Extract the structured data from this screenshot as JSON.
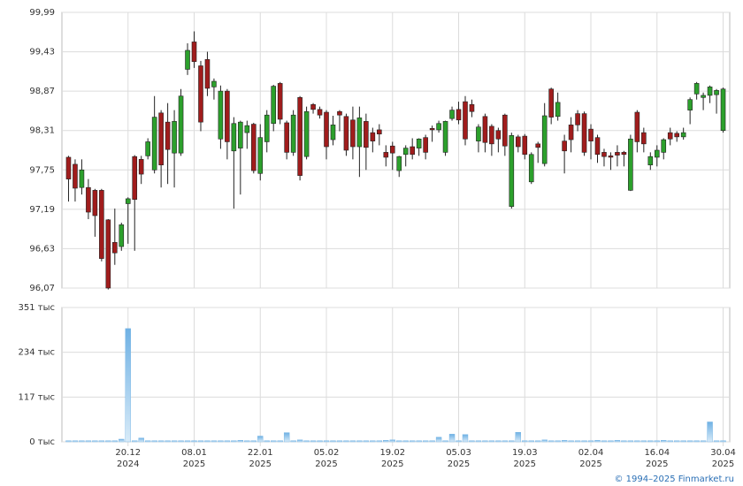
{
  "chart_data": {
    "type": "candlestick",
    "up_color": "#2ca02c",
    "down_color": "#a01c1c",
    "volume_color": "#6fb1e4",
    "ylim": [
      96.07,
      99.99
    ],
    "yticks": [
      {
        "value": 96.07,
        "label": "96,07"
      },
      {
        "value": 96.63,
        "label": "96,63"
      },
      {
        "value": 97.19,
        "label": "97,19"
      },
      {
        "value": 97.75,
        "label": "97,75"
      },
      {
        "value": 98.31,
        "label": "98,31"
      },
      {
        "value": 98.87,
        "label": "98,87"
      },
      {
        "value": 99.43,
        "label": "99,43"
      },
      {
        "value": 99.99,
        "label": "99,99"
      }
    ],
    "xlim": [
      -1,
      100
    ],
    "xticks": [
      {
        "value": 9,
        "label": "20.12",
        "year": "2024"
      },
      {
        "value": 19,
        "label": "08.01",
        "year": "2025"
      },
      {
        "value": 29,
        "label": "22.01",
        "year": "2025"
      },
      {
        "value": 39,
        "label": "05.02",
        "year": "2025"
      },
      {
        "value": 49,
        "label": "19.02",
        "year": "2025"
      },
      {
        "value": 59,
        "label": "05.03",
        "year": "2025"
      },
      {
        "value": 69,
        "label": "19.03",
        "year": "2025"
      },
      {
        "value": 79,
        "label": "02.04",
        "year": "2025"
      },
      {
        "value": 89,
        "label": "16.04",
        "year": "2025"
      },
      {
        "value": 99,
        "label": "30.04",
        "year": "2025"
      }
    ],
    "open": [
      97.93,
      97.83,
      97.5,
      97.5,
      97.46,
      97.46,
      97.04,
      96.72,
      96.66,
      97.27,
      97.94,
      97.9,
      97.95,
      97.75,
      98.56,
      98.43,
      97.99,
      97.99,
      99.18,
      99.57,
      99.23,
      99.32,
      98.93,
      98.19,
      98.87,
      98.02,
      98.06,
      98.28,
      98.4,
      97.7,
      98.15,
      98.41,
      98.98,
      98.42,
      98.0,
      98.78,
      97.94,
      98.68,
      98.61,
      98.57,
      98.18,
      98.58,
      98.51,
      98.46,
      98.08,
      98.44,
      98.28,
      98.32,
      98.0,
      98.09,
      97.74,
      97.97,
      98.08,
      98.06,
      98.21,
      98.34,
      98.32,
      98.0,
      98.48,
      98.61,
      98.72,
      98.68,
      98.16,
      98.51,
      98.37,
      98.31,
      98.53,
      97.23,
      98.22,
      98.23,
      97.58,
      98.12,
      97.84,
      98.9,
      98.51,
      98.16,
      98.39,
      98.55,
      98.55,
      98.33,
      98.21,
      98.0,
      97.95,
      98.0,
      98.0,
      97.46,
      98.57,
      98.28,
      97.82,
      97.93,
      98.0,
      98.28,
      98.27,
      98.22,
      98.6,
      98.83,
      98.78,
      98.81,
      98.82,
      98.31
    ],
    "high": [
      97.95,
      97.9,
      97.9,
      97.62,
      97.48,
      97.48,
      97.05,
      97.2,
      97.0,
      97.36,
      97.96,
      97.95,
      98.2,
      98.8,
      98.6,
      98.7,
      98.6,
      98.9,
      99.55,
      99.72,
      99.3,
      99.43,
      99.05,
      98.95,
      98.9,
      98.5,
      98.45,
      98.45,
      98.42,
      98.4,
      98.6,
      98.96,
      99.0,
      98.45,
      98.6,
      98.8,
      98.65,
      98.7,
      98.65,
      98.6,
      98.52,
      98.6,
      98.55,
      98.65,
      98.65,
      98.55,
      98.35,
      98.4,
      98.1,
      98.15,
      97.95,
      98.1,
      98.2,
      98.2,
      98.25,
      98.38,
      98.45,
      98.45,
      98.65,
      98.72,
      98.8,
      98.75,
      98.4,
      98.55,
      98.4,
      98.35,
      98.55,
      98.28,
      98.25,
      98.26,
      98.0,
      98.15,
      98.7,
      98.92,
      98.85,
      98.25,
      98.5,
      98.6,
      98.58,
      98.4,
      98.25,
      98.05,
      98.0,
      98.1,
      98.02,
      98.25,
      98.6,
      98.35,
      98.0,
      98.1,
      98.2,
      98.35,
      98.3,
      98.35,
      98.78,
      99.0,
      98.85,
      98.95,
      98.9,
      98.92
    ],
    "low": [
      97.3,
      97.3,
      97.4,
      97.05,
      96.8,
      96.45,
      96.05,
      96.4,
      96.6,
      96.7,
      96.6,
      97.55,
      97.9,
      97.7,
      97.5,
      97.55,
      97.5,
      97.95,
      99.1,
      99.2,
      98.3,
      98.8,
      98.75,
      98.05,
      97.9,
      97.2,
      97.4,
      98.05,
      97.7,
      97.6,
      98.0,
      98.3,
      98.4,
      97.9,
      97.95,
      97.6,
      97.9,
      98.55,
      98.48,
      97.9,
      98.1,
      98.3,
      97.95,
      97.9,
      97.65,
      97.75,
      98.0,
      98.1,
      97.8,
      97.75,
      97.65,
      97.8,
      97.9,
      97.95,
      97.9,
      98.15,
      98.28,
      97.95,
      98.45,
      98.4,
      98.1,
      98.5,
      98.0,
      98.0,
      97.95,
      98.0,
      97.95,
      97.2,
      98.0,
      97.9,
      97.55,
      97.85,
      97.8,
      98.4,
      98.45,
      97.7,
      98.0,
      98.3,
      97.95,
      97.9,
      97.85,
      97.8,
      97.75,
      97.8,
      97.8,
      97.45,
      98.0,
      98.0,
      97.75,
      97.8,
      97.9,
      98.1,
      98.15,
      98.18,
      98.4,
      98.75,
      98.6,
      98.7,
      98.55,
      98.28
    ],
    "close": [
      97.62,
      97.49,
      97.75,
      97.15,
      97.1,
      96.49,
      96.07,
      96.57,
      96.97,
      97.34,
      97.33,
      97.69,
      98.15,
      98.5,
      97.82,
      98.04,
      98.44,
      98.8,
      99.45,
      99.29,
      98.43,
      98.91,
      99.01,
      98.87,
      98.15,
      98.41,
      98.43,
      98.38,
      97.74,
      98.21,
      98.53,
      98.94,
      98.47,
      98.0,
      98.53,
      97.67,
      98.58,
      98.61,
      98.53,
      98.08,
      98.39,
      98.53,
      98.03,
      98.08,
      98.49,
      98.07,
      98.16,
      98.26,
      97.93,
      97.99,
      97.94,
      98.06,
      97.97,
      98.19,
      98.0,
      98.32,
      98.41,
      98.44,
      98.6,
      98.46,
      98.19,
      98.58,
      98.36,
      98.14,
      98.12,
      98.19,
      98.09,
      98.24,
      98.08,
      97.97,
      97.97,
      98.07,
      98.52,
      98.5,
      98.71,
      98.02,
      98.18,
      98.39,
      98.0,
      98.16,
      97.97,
      97.94,
      97.93,
      97.96,
      97.97,
      98.19,
      98.15,
      98.12,
      97.94,
      98.03,
      98.18,
      98.19,
      98.22,
      98.28,
      98.75,
      98.98,
      98.81,
      98.93,
      98.88,
      98.9
    ],
    "volume": {
      "ylim": [
        0,
        351
      ],
      "yticks": [
        {
          "value": 0,
          "label": "0 тыс"
        },
        {
          "value": 117,
          "label": "117 тыс"
        },
        {
          "value": 234,
          "label": "234 тыс"
        },
        {
          "value": 351,
          "label": "351 тыс"
        }
      ],
      "values": [
        3,
        3,
        3,
        3,
        3,
        3,
        3,
        3,
        7,
        296,
        3,
        10,
        3,
        3,
        3,
        3,
        3,
        3,
        3,
        3,
        3,
        3,
        3,
        3,
        3,
        3,
        4,
        3,
        3,
        15,
        3,
        3,
        3,
        24,
        3,
        5,
        3,
        3,
        3,
        3,
        3,
        3,
        3,
        3,
        3,
        3,
        3,
        3,
        4,
        5,
        3,
        3,
        3,
        3,
        3,
        3,
        12,
        3,
        20,
        3,
        19,
        3,
        3,
        3,
        3,
        3,
        3,
        3,
        25,
        3,
        3,
        3,
        5,
        3,
        3,
        4,
        3,
        3,
        3,
        3,
        4,
        3,
        3,
        4,
        3,
        3,
        3,
        3,
        3,
        3,
        4,
        3,
        3,
        3,
        3,
        3,
        3,
        52,
        3,
        3
      ]
    }
  },
  "footer": "© 1994–2025 Finmarket.ru"
}
